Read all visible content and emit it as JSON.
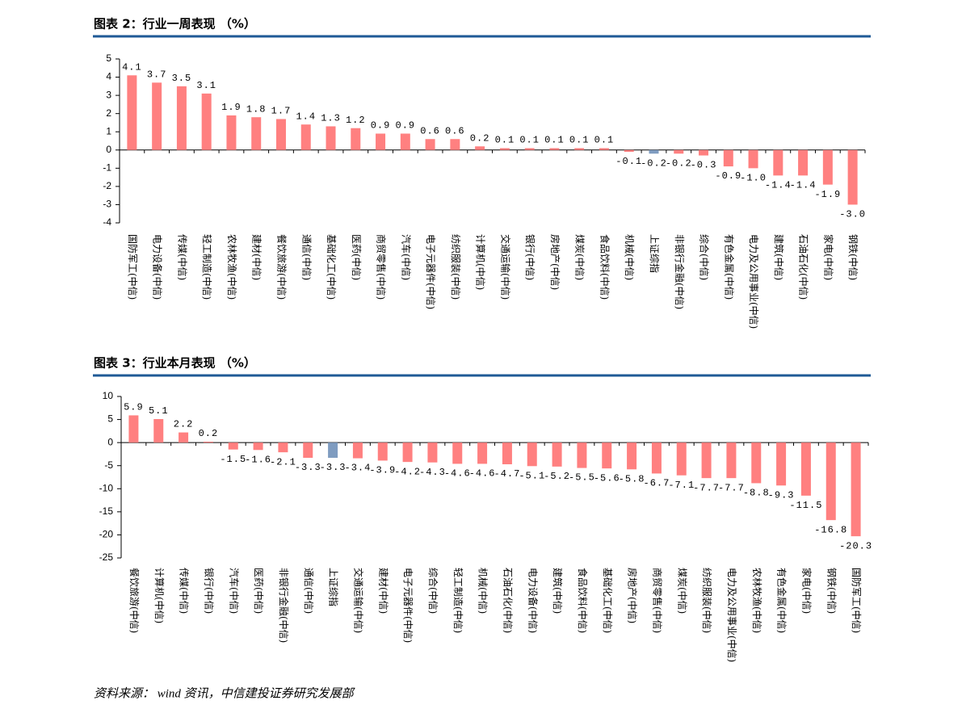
{
  "chart_data": [
    {
      "type": "bar",
      "title": "图表 2：行业一周表现 （%）",
      "categories": [
        "国防军工(中信)",
        "电力设备(中信)",
        "传媒(中信)",
        "轻工制造(中信)",
        "农林牧渔(中信)",
        "建材(中信)",
        "餐饮旅游(中信)",
        "通信(中信)",
        "基础化工(中信)",
        "医药(中信)",
        "商贸零售(中信)",
        "汽车(中信)",
        "电子元器件(中信)",
        "纺织服装(中信)",
        "计算机(中信)",
        "交通运输(中信)",
        "银行(中信)",
        "房地产(中信)",
        "煤炭(中信)",
        "食品饮料(中信)",
        "机械(中信)",
        "上证综指",
        "非银行金融(中信)",
        "综合(中信)",
        "有色金属(中信)",
        "电力及公用事业(中信)",
        "建筑(中信)",
        "石油石化(中信)",
        "家电(中信)",
        "钢铁(中信)"
      ],
      "values": [
        4.1,
        3.7,
        3.5,
        3.1,
        1.9,
        1.8,
        1.7,
        1.4,
        1.3,
        1.2,
        0.9,
        0.9,
        0.6,
        0.6,
        0.2,
        0.1,
        0.1,
        0.1,
        0.1,
        0.1,
        -0.1,
        -0.2,
        -0.2,
        -0.3,
        -0.9,
        -1.0,
        -1.4,
        -1.4,
        -1.9,
        -3.0
      ],
      "value_labels": [
        "4.1",
        "3.7",
        "3.5",
        "3.1",
        "1.9",
        "1.8",
        "1.7",
        "1.4",
        "1.3",
        "1.2",
        "0.9",
        "0.9",
        "0.6",
        "0.6",
        "0.2",
        "0.1",
        "0.1",
        "0.1",
        "0.1",
        "0.1",
        "-0.1",
        "-0.2",
        "-0.2",
        "-0.3",
        "-0.9",
        "-1.0",
        "-1.4",
        "-1.4",
        "-1.9",
        "-3.0"
      ],
      "colors": [
        "#ff8080",
        "#ff8080",
        "#ff8080",
        "#ff8080",
        "#ff8080",
        "#ff8080",
        "#ff8080",
        "#ff8080",
        "#ff8080",
        "#ff8080",
        "#ff8080",
        "#ff8080",
        "#ff8080",
        "#ff8080",
        "#ff8080",
        "#ff8080",
        "#ff8080",
        "#ff8080",
        "#ff8080",
        "#ff8080",
        "#ff8080",
        "#7f9cc0",
        "#ff8080",
        "#ff8080",
        "#ff8080",
        "#ff8080",
        "#ff8080",
        "#ff8080",
        "#ff8080",
        "#ff8080"
      ],
      "ylim": [
        -4,
        5
      ],
      "yticks": [
        -4,
        -3,
        -2,
        -1,
        0,
        1,
        2,
        3,
        4,
        5
      ]
    },
    {
      "type": "bar",
      "title": "图表 3：行业本月表现 （%）",
      "categories": [
        "餐饮旅游(中信)",
        "计算机(中信)",
        "传媒(中信)",
        "银行(中信)",
        "汽车(中信)",
        "医药(中信)",
        "非银行金融(中信)",
        "通信(中信)",
        "上证综指",
        "交通运输(中信)",
        "建材(中信)",
        "电子元器件(中信)",
        "综合(中信)",
        "轻工制造(中信)",
        "机械(中信)",
        "石油石化(中信)",
        "电力设备(中信)",
        "建筑(中信)",
        "食品饮料(中信)",
        "基础化工(中信)",
        "房地产(中信)",
        "商贸零售(中信)",
        "煤炭(中信)",
        "纺织服装(中信)",
        "电力及公用事业(中信)",
        "农林牧渔(中信)",
        "有色金属(中信)",
        "家电(中信)",
        "钢铁(中信)",
        "国防军工(中信)"
      ],
      "values": [
        5.9,
        5.1,
        2.2,
        0.2,
        -1.5,
        -1.6,
        -2.1,
        -3.3,
        -3.3,
        -3.4,
        -3.9,
        -4.2,
        -4.3,
        -4.6,
        -4.6,
        -4.7,
        -5.1,
        -5.2,
        -5.5,
        -5.6,
        -5.8,
        -6.7,
        -7.1,
        -7.7,
        -7.7,
        -8.8,
        -9.3,
        -11.5,
        -16.8,
        -20.3
      ],
      "colors": [
        "#ff8080",
        "#ff8080",
        "#ff8080",
        "#ff8080",
        "#ff8080",
        "#ff8080",
        "#ff8080",
        "#ff8080",
        "#7f9cc0",
        "#ff8080",
        "#ff8080",
        "#ff8080",
        "#ff8080",
        "#ff8080",
        "#ff8080",
        "#ff8080",
        "#ff8080",
        "#ff8080",
        "#ff8080",
        "#ff8080",
        "#ff8080",
        "#ff8080",
        "#ff8080",
        "#ff8080",
        "#ff8080",
        "#ff8080",
        "#ff8080",
        "#ff8080",
        "#ff8080",
        "#ff8080"
      ],
      "ylim": [
        -25,
        10
      ],
      "yticks": [
        -25,
        -20,
        -15,
        -10,
        -5,
        0,
        5,
        10
      ]
    }
  ],
  "source": "资料来源： wind 资讯，中信建投证券研究发展部"
}
